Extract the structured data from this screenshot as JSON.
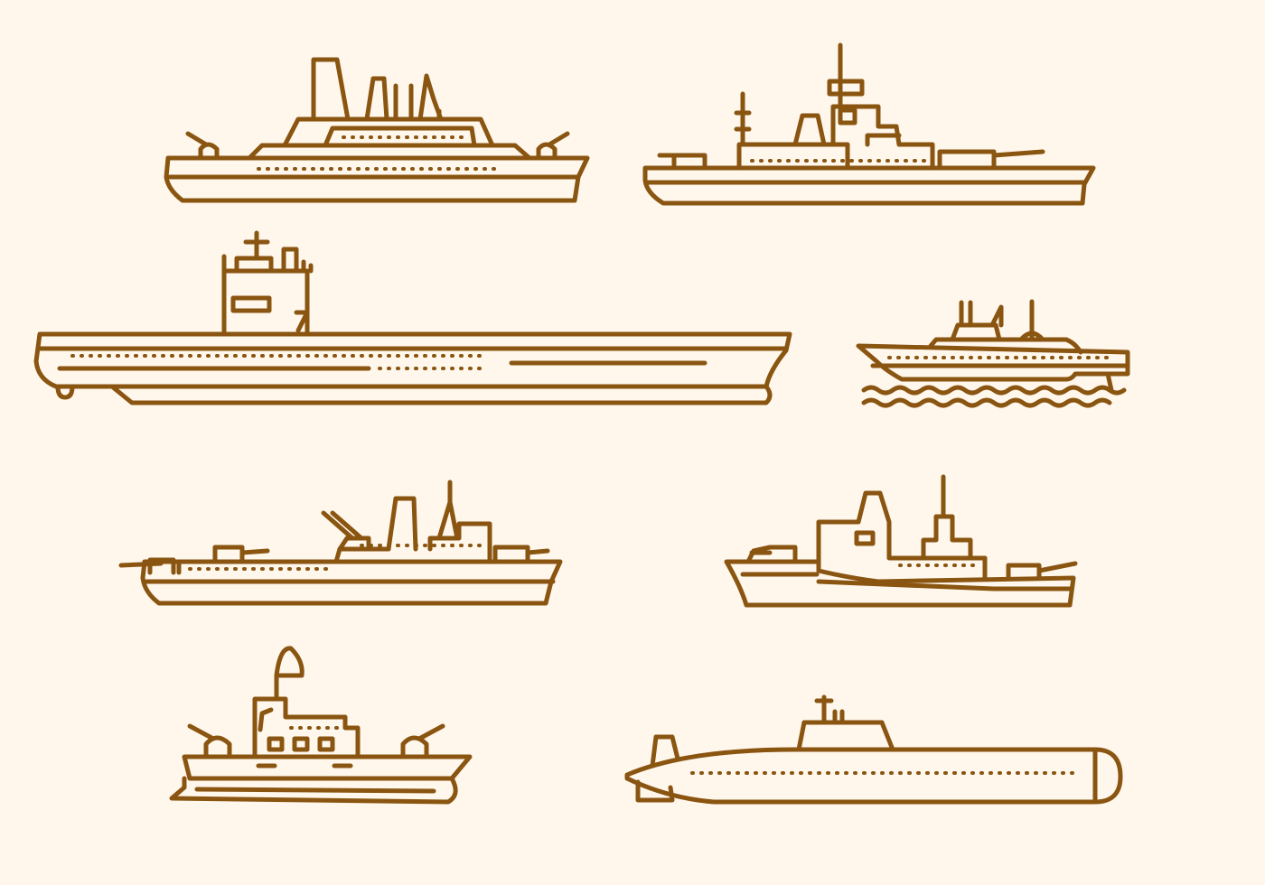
{
  "colors": {
    "background": "#FFF7EC",
    "stroke": "#8A5511"
  },
  "ships": [
    {
      "name": "cruiser"
    },
    {
      "name": "battleship"
    },
    {
      "name": "aircraft-carrier"
    },
    {
      "name": "patrol-boat"
    },
    {
      "name": "destroyer"
    },
    {
      "name": "frigate"
    },
    {
      "name": "gunboat"
    },
    {
      "name": "submarine"
    }
  ]
}
